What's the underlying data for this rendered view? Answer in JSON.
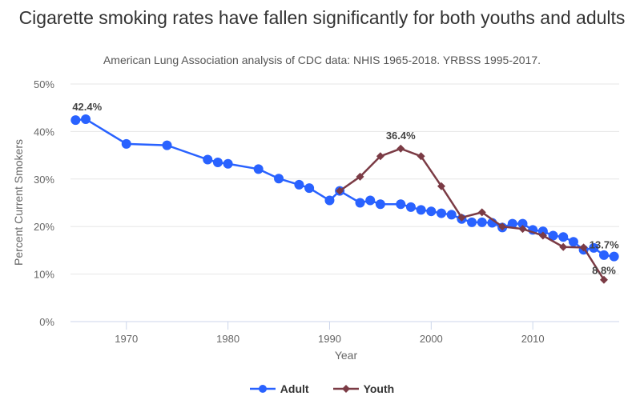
{
  "chart_data": {
    "type": "line",
    "title": "Cigarette smoking rates have fallen significantly for both youths and adults",
    "subtitle": "American Lung Association analysis of CDC data: NHIS 1965-2018. YRBSS 1995-2017.",
    "xlabel": "Year",
    "ylabel": "Percent Current Smokers",
    "xlim": [
      1964.5,
      2018.5
    ],
    "ylim": [
      0,
      50
    ],
    "x_ticks": [
      1970,
      1980,
      1990,
      2000,
      2010
    ],
    "y_ticks": [
      0,
      10,
      20,
      30,
      40,
      50
    ],
    "y_tick_labels": [
      "0%",
      "10%",
      "20%",
      "30%",
      "40%",
      "50%"
    ],
    "grid": true,
    "legend_position": "bottom",
    "series": [
      {
        "name": "Adult",
        "color": "#2962ff",
        "marker": "circle",
        "x": [
          1965,
          1966,
          1970,
          1974,
          1978,
          1979,
          1980,
          1983,
          1985,
          1987,
          1988,
          1990,
          1991,
          1993,
          1994,
          1995,
          1997,
          1998,
          1999,
          2000,
          2001,
          2002,
          2003,
          2004,
          2005,
          2006,
          2007,
          2008,
          2009,
          2010,
          2011,
          2012,
          2013,
          2014,
          2015,
          2016,
          2017,
          2018
        ],
        "values": [
          42.4,
          42.6,
          37.4,
          37.1,
          34.1,
          33.5,
          33.2,
          32.1,
          30.1,
          28.8,
          28.1,
          25.5,
          27.5,
          25.0,
          25.5,
          24.7,
          24.7,
          24.1,
          23.5,
          23.2,
          22.8,
          22.5,
          21.6,
          20.9,
          20.9,
          20.8,
          19.8,
          20.6,
          20.6,
          19.3,
          19.0,
          18.1,
          17.8,
          16.8,
          15.1,
          15.5,
          14.0,
          13.7
        ],
        "labels": [
          {
            "x": 1965,
            "text": "42.4%"
          },
          {
            "x": 2018,
            "text": "13.7%"
          }
        ]
      },
      {
        "name": "Youth",
        "color": "#7b3b45",
        "marker": "diamond",
        "x": [
          1991,
          1993,
          1995,
          1997,
          1999,
          2001,
          2003,
          2005,
          2007,
          2009,
          2011,
          2013,
          2015,
          2017
        ],
        "values": [
          27.5,
          30.5,
          34.8,
          36.4,
          34.8,
          28.5,
          21.9,
          23.0,
          20.0,
          19.5,
          18.1,
          15.7,
          15.6,
          8.8
        ],
        "labels": [
          {
            "x": 1997,
            "text": "36.4%"
          },
          {
            "x": 2017,
            "text": "8.8%"
          }
        ]
      }
    ]
  }
}
